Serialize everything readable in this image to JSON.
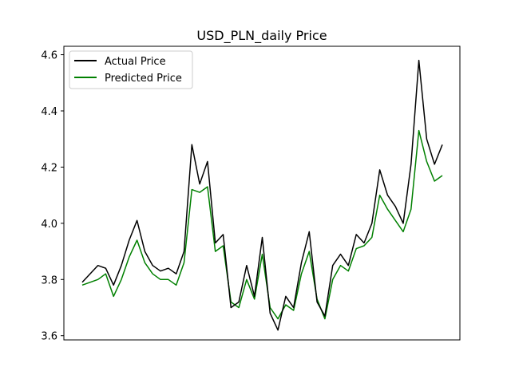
{
  "chart_data": {
    "type": "line",
    "title": "USD_PLN_daily Price",
    "xlabel": "",
    "ylabel": "",
    "ylim": [
      3.585,
      4.63
    ],
    "yticks": [
      3.6,
      3.8,
      4.0,
      4.2,
      4.4,
      4.6
    ],
    "ytick_labels": [
      "3.6",
      "3.8",
      "4.0",
      "4.2",
      "4.4",
      "4.6"
    ],
    "x_ticks_shown": false,
    "grid": false,
    "legend_position": "top-left",
    "x": [
      0,
      10,
      20,
      30,
      40,
      50,
      60,
      70,
      80,
      90,
      100,
      110,
      120,
      130,
      140,
      150,
      160,
      170,
      180,
      190,
      200,
      210,
      220,
      230,
      240,
      250,
      260,
      270,
      280,
      290,
      300,
      310,
      320,
      330,
      340,
      350,
      360,
      370,
      380,
      390,
      400,
      410,
      420,
      430,
      440,
      450,
      460
    ],
    "series": [
      {
        "name": "Actual Price",
        "color": "#000000",
        "values": [
          3.79,
          3.82,
          3.85,
          3.84,
          3.78,
          3.85,
          3.94,
          4.01,
          3.9,
          3.85,
          3.83,
          3.84,
          3.82,
          3.9,
          4.28,
          4.14,
          4.22,
          3.93,
          3.96,
          3.7,
          3.72,
          3.85,
          3.74,
          3.95,
          3.68,
          3.62,
          3.74,
          3.7,
          3.86,
          3.97,
          3.72,
          3.67,
          3.85,
          3.89,
          3.85,
          3.96,
          3.93,
          4.0,
          4.19,
          4.1,
          4.06,
          4.0,
          4.21,
          4.58,
          4.3,
          4.21,
          4.28
        ]
      },
      {
        "name": "Predicted Price",
        "color": "#008000",
        "values": [
          3.78,
          3.79,
          3.8,
          3.82,
          3.74,
          3.8,
          3.88,
          3.94,
          3.86,
          3.82,
          3.8,
          3.8,
          3.78,
          3.86,
          4.12,
          4.11,
          4.13,
          3.9,
          3.92,
          3.72,
          3.7,
          3.8,
          3.73,
          3.89,
          3.7,
          3.66,
          3.71,
          3.69,
          3.82,
          3.9,
          3.73,
          3.66,
          3.8,
          3.85,
          3.83,
          3.91,
          3.92,
          3.95,
          4.1,
          4.05,
          4.01,
          3.97,
          4.05,
          4.33,
          4.22,
          4.15,
          4.17
        ]
      }
    ]
  }
}
